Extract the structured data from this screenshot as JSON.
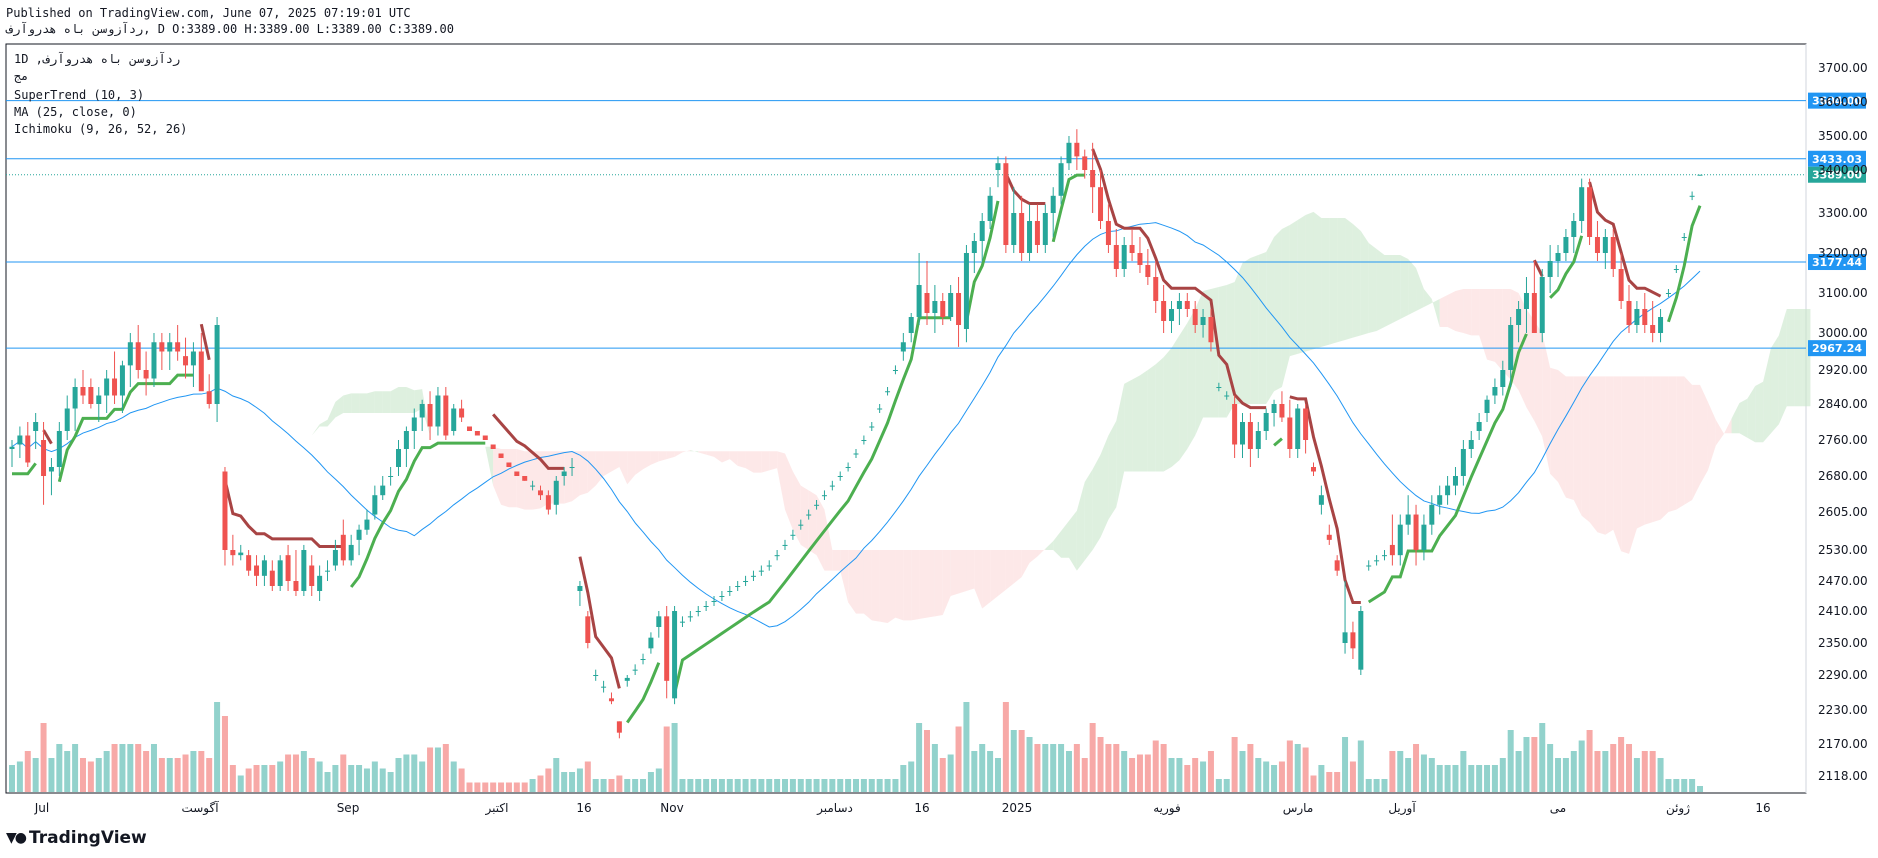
{
  "header": {
    "published": "Published on TradingView.com, June 07, 2025 07:19:01 UTC",
    "ohlc": "ردآزوسن باه هدروآرف, D O:3389.00 H:3389.00 L:3389.00 C:3389.00"
  },
  "legend": {
    "symbol": "1D ,ردآزوسن باه هدروآرف",
    "exchange": "مج",
    "supertrend": "SuperTrend (10, 3)",
    "ma": "MA (25, close, 0)",
    "ichimoku": "Ichimoku (9, 26, 52, 26)"
  },
  "brand": {
    "name": "TradingView",
    "logo_icon": "tradingview-logo-icon"
  },
  "colors": {
    "up": "#26a69a",
    "down": "#ef5350",
    "supertrend_up": "#4caf50",
    "supertrend_down": "#a84444",
    "ma": "#2196f3",
    "cloud_bull": "#c8e6c9",
    "cloud_bear": "#fcd8d8",
    "hline": "#2196f3",
    "last_price": "#26a69a"
  },
  "chart_data": {
    "type": "candlestick",
    "yticks": [
      3700,
      3600,
      3500,
      3400,
      3300,
      3200,
      3100,
      3000,
      2920,
      2840,
      2760,
      2680,
      2605,
      2530,
      2470,
      2410,
      2350,
      2290,
      2230,
      2170,
      2118
    ],
    "xticks": [
      "Jul",
      "آگوست",
      "Sep",
      "اکتبر",
      "16",
      "Nov",
      "دسامبر",
      "16",
      "2025",
      "فوریه",
      "مارس",
      "آوریل",
      "می",
      "ژوئن",
      "16"
    ],
    "horizontal_lines": [
      3604.0,
      3433.03,
      3177.44,
      2967.24
    ],
    "last_price": 3389.0,
    "candles_ohlc": [
      [
        2740,
        2760,
        2700,
        2745
      ],
      [
        2750,
        2790,
        2720,
        2770
      ],
      [
        2770,
        2800,
        2700,
        2710
      ],
      [
        2780,
        2820,
        2740,
        2800
      ],
      [
        2760,
        2800,
        2620,
        2680
      ],
      [
        2690,
        2720,
        2640,
        2700
      ],
      [
        2700,
        2800,
        2680,
        2780
      ],
      [
        2780,
        2860,
        2760,
        2830
      ],
      [
        2830,
        2900,
        2780,
        2880
      ],
      [
        2880,
        2920,
        2840,
        2860
      ],
      [
        2880,
        2900,
        2830,
        2840
      ],
      [
        2840,
        2880,
        2800,
        2860
      ],
      [
        2860,
        2920,
        2820,
        2900
      ],
      [
        2900,
        2960,
        2840,
        2860
      ],
      [
        2860,
        2940,
        2820,
        2930
      ],
      [
        2930,
        3000,
        2880,
        2980
      ],
      [
        2980,
        3020,
        2900,
        2920
      ],
      [
        2920,
        2960,
        2860,
        2900
      ],
      [
        2900,
        3000,
        2880,
        2980
      ],
      [
        2980,
        3000,
        2920,
        2960
      ],
      [
        2960,
        3000,
        2920,
        2980
      ],
      [
        2980,
        3020,
        2940,
        2960
      ],
      [
        2950,
        2990,
        2900,
        2930
      ],
      [
        2930,
        2980,
        2880,
        2960
      ],
      [
        2960,
        3000,
        2900,
        2870
      ],
      [
        2870,
        2910,
        2830,
        2840
      ],
      [
        2840,
        3040,
        2800,
        3020
      ],
      [
        2690,
        2700,
        2500,
        2530
      ],
      [
        2530,
        2560,
        2500,
        2520
      ],
      [
        2520,
        2540,
        2510,
        2525
      ],
      [
        2520,
        2530,
        2480,
        2490
      ],
      [
        2500,
        2520,
        2460,
        2480
      ],
      [
        2480,
        2520,
        2460,
        2510
      ],
      [
        2490,
        2510,
        2450,
        2460
      ],
      [
        2460,
        2520,
        2450,
        2510
      ],
      [
        2520,
        2540,
        2450,
        2470
      ],
      [
        2470,
        2530,
        2440,
        2450
      ],
      [
        2450,
        2540,
        2440,
        2530
      ],
      [
        2500,
        2520,
        2440,
        2460
      ],
      [
        2450,
        2500,
        2430,
        2480
      ],
      [
        2490,
        2510,
        2470,
        2490
      ],
      [
        2500,
        2550,
        2490,
        2530
      ],
      [
        2560,
        2590,
        2500,
        2510
      ],
      [
        2510,
        2560,
        2500,
        2540
      ],
      [
        2550,
        2580,
        2520,
        2570
      ],
      [
        2570,
        2610,
        2560,
        2590
      ],
      [
        2600,
        2660,
        2590,
        2640
      ],
      [
        2640,
        2680,
        2630,
        2660
      ],
      [
        2680,
        2700,
        2660,
        2680
      ],
      [
        2700,
        2760,
        2680,
        2740
      ],
      [
        2740,
        2790,
        2700,
        2780
      ],
      [
        2780,
        2830,
        2740,
        2810
      ],
      [
        2810,
        2850,
        2780,
        2840
      ],
      [
        2840,
        2870,
        2760,
        2790
      ],
      [
        2790,
        2880,
        2770,
        2860
      ],
      [
        2860,
        2880,
        2760,
        2770
      ],
      [
        2780,
        2840,
        2770,
        2830
      ],
      [
        2830,
        2850,
        2800,
        2810
      ],
      [
        2790,
        2790,
        2780,
        2780
      ],
      [
        2780,
        2780,
        2770,
        2770
      ],
      [
        2770,
        2770,
        2760,
        2760
      ],
      [
        2750,
        2750,
        2740,
        2740
      ],
      [
        2730,
        2730,
        2720,
        2720
      ],
      [
        2710,
        2710,
        2700,
        2700
      ],
      [
        2690,
        2690,
        2680,
        2680
      ],
      [
        2680,
        2680,
        2670,
        2670
      ],
      [
        2660,
        2670,
        2650,
        2660
      ],
      [
        2650,
        2660,
        2630,
        2640
      ],
      [
        2640,
        2650,
        2600,
        2610
      ],
      [
        2620,
        2680,
        2600,
        2670
      ],
      [
        2680,
        2700,
        2660,
        2690
      ],
      [
        2700,
        2720,
        2680,
        2700
      ],
      [
        2450,
        2470,
        2420,
        2460
      ],
      [
        2400,
        2410,
        2340,
        2350
      ],
      [
        2290,
        2300,
        2280,
        2290
      ],
      [
        2270,
        2280,
        2260,
        2270
      ],
      [
        2250,
        2260,
        2240,
        2245
      ],
      [
        2210,
        2210,
        2180,
        2190
      ],
      [
        2280,
        2290,
        2270,
        2285
      ],
      [
        2300,
        2310,
        2290,
        2300
      ],
      [
        2320,
        2330,
        2310,
        2320
      ],
      [
        2340,
        2370,
        2330,
        2360
      ],
      [
        2380,
        2410,
        2360,
        2400
      ],
      [
        2400,
        2420,
        2250,
        2280
      ],
      [
        2250,
        2420,
        2240,
        2410
      ],
      [
        2390,
        2400,
        2380,
        2390
      ],
      [
        2400,
        2410,
        2390,
        2400
      ],
      [
        2410,
        2420,
        2400,
        2410
      ],
      [
        2420,
        2430,
        2410,
        2420
      ],
      [
        2430,
        2440,
        2420,
        2430
      ],
      [
        2440,
        2450,
        2430,
        2440
      ],
      [
        2450,
        2460,
        2440,
        2450
      ],
      [
        2460,
        2470,
        2450,
        2460
      ],
      [
        2470,
        2480,
        2460,
        2470
      ],
      [
        2480,
        2490,
        2470,
        2480
      ],
      [
        2490,
        2500,
        2480,
        2490
      ],
      [
        2500,
        2510,
        2490,
        2500
      ],
      [
        2520,
        2530,
        2510,
        2520
      ],
      [
        2540,
        2550,
        2530,
        2540
      ],
      [
        2560,
        2570,
        2550,
        2560
      ],
      [
        2580,
        2590,
        2570,
        2580
      ],
      [
        2600,
        2610,
        2590,
        2600
      ],
      [
        2620,
        2630,
        2610,
        2620
      ],
      [
        2640,
        2650,
        2630,
        2640
      ],
      [
        2660,
        2670,
        2650,
        2660
      ],
      [
        2680,
        2690,
        2670,
        2680
      ],
      [
        2700,
        2710,
        2690,
        2700
      ],
      [
        2730,
        2740,
        2720,
        2730
      ],
      [
        2760,
        2770,
        2750,
        2760
      ],
      [
        2790,
        2800,
        2780,
        2790
      ],
      [
        2830,
        2840,
        2820,
        2830
      ],
      [
        2870,
        2880,
        2860,
        2870
      ],
      [
        2920,
        2930,
        2910,
        2920
      ],
      [
        2960,
        3000,
        2940,
        2980
      ],
      [
        3000,
        3050,
        2980,
        3040
      ],
      [
        3040,
        3200,
        3020,
        3120
      ],
      [
        3100,
        3180,
        3020,
        3050
      ],
      [
        3050,
        3120,
        3000,
        3080
      ],
      [
        3080,
        3100,
        3020,
        3040
      ],
      [
        3040,
        3120,
        3030,
        3100
      ],
      [
        3100,
        3140,
        2970,
        3020
      ],
      [
        3010,
        3220,
        2980,
        3200
      ],
      [
        3200,
        3250,
        3150,
        3230
      ],
      [
        3230,
        3300,
        3180,
        3280
      ],
      [
        3280,
        3360,
        3260,
        3340
      ],
      [
        3400,
        3440,
        3360,
        3420
      ],
      [
        3420,
        3440,
        3200,
        3220
      ],
      [
        3220,
        3360,
        3200,
        3300
      ],
      [
        3300,
        3340,
        3180,
        3200
      ],
      [
        3200,
        3320,
        3180,
        3280
      ],
      [
        3280,
        3320,
        3200,
        3220
      ],
      [
        3220,
        3320,
        3200,
        3300
      ],
      [
        3300,
        3360,
        3240,
        3340
      ],
      [
        3340,
        3440,
        3320,
        3420
      ],
      [
        3420,
        3500,
        3400,
        3480
      ],
      [
        3480,
        3520,
        3400,
        3440
      ],
      [
        3440,
        3460,
        3380,
        3400
      ],
      [
        3400,
        3480,
        3300,
        3360
      ],
      [
        3360,
        3400,
        3260,
        3280
      ],
      [
        3280,
        3320,
        3200,
        3220
      ],
      [
        3220,
        3260,
        3140,
        3160
      ],
      [
        3160,
        3240,
        3140,
        3220
      ],
      [
        3220,
        3260,
        3180,
        3200
      ],
      [
        3200,
        3240,
        3150,
        3170
      ],
      [
        3170,
        3210,
        3120,
        3140
      ],
      [
        3140,
        3180,
        3050,
        3080
      ],
      [
        3080,
        3120,
        3000,
        3030
      ],
      [
        3030,
        3080,
        3000,
        3060
      ],
      [
        3060,
        3100,
        3020,
        3080
      ],
      [
        3080,
        3100,
        3040,
        3060
      ],
      [
        3060,
        3080,
        3000,
        3020
      ],
      [
        3020,
        3060,
        2990,
        3040
      ],
      [
        3040,
        3060,
        2960,
        2980
      ],
      [
        2880,
        2890,
        2870,
        2880
      ],
      [
        2860,
        2870,
        2850,
        2860
      ],
      [
        2840,
        2860,
        2720,
        2750
      ],
      [
        2750,
        2820,
        2720,
        2800
      ],
      [
        2800,
        2820,
        2700,
        2740
      ],
      [
        2740,
        2800,
        2720,
        2780
      ],
      [
        2780,
        2830,
        2760,
        2820
      ],
      [
        2820,
        2850,
        2790,
        2840
      ],
      [
        2840,
        2870,
        2800,
        2810
      ],
      [
        2810,
        2850,
        2720,
        2740
      ],
      [
        2740,
        2840,
        2720,
        2830
      ],
      [
        2830,
        2840,
        2730,
        2760
      ],
      [
        2700,
        2710,
        2680,
        2690
      ],
      [
        2620,
        2660,
        2600,
        2640
      ],
      [
        2560,
        2580,
        2540,
        2550
      ],
      [
        2510,
        2520,
        2480,
        2490
      ],
      [
        2350,
        2470,
        2330,
        2370
      ],
      [
        2370,
        2390,
        2320,
        2340
      ],
      [
        2300,
        2420,
        2290,
        2410
      ],
      [
        2500,
        2510,
        2490,
        2500
      ],
      [
        2510,
        2520,
        2500,
        2510
      ],
      [
        2520,
        2530,
        2510,
        2520
      ],
      [
        2540,
        2600,
        2500,
        2520
      ],
      [
        2520,
        2600,
        2500,
        2580
      ],
      [
        2580,
        2640,
        2560,
        2600
      ],
      [
        2600,
        2620,
        2500,
        2530
      ],
      [
        2530,
        2600,
        2510,
        2580
      ],
      [
        2580,
        2640,
        2560,
        2620
      ],
      [
        2620,
        2660,
        2600,
        2640
      ],
      [
        2640,
        2680,
        2620,
        2660
      ],
      [
        2660,
        2700,
        2640,
        2680
      ],
      [
        2680,
        2760,
        2660,
        2740
      ],
      [
        2740,
        2780,
        2720,
        2760
      ],
      [
        2780,
        2820,
        2760,
        2800
      ],
      [
        2820,
        2860,
        2800,
        2850
      ],
      [
        2860,
        2900,
        2840,
        2880
      ],
      [
        2880,
        2940,
        2860,
        2920
      ],
      [
        2920,
        3040,
        2880,
        3020
      ],
      [
        3020,
        3080,
        2980,
        3060
      ],
      [
        3060,
        3140,
        3000,
        3100
      ],
      [
        3100,
        3180,
        3040,
        3000
      ],
      [
        3000,
        3160,
        2980,
        3140
      ],
      [
        3140,
        3220,
        3100,
        3180
      ],
      [
        3180,
        3220,
        3140,
        3200
      ],
      [
        3200,
        3260,
        3180,
        3240
      ],
      [
        3240,
        3300,
        3200,
        3280
      ],
      [
        3280,
        3380,
        3250,
        3360
      ],
      [
        3360,
        3380,
        3220,
        3240
      ],
      [
        3240,
        3280,
        3180,
        3200
      ],
      [
        3200,
        3260,
        3160,
        3240
      ],
      [
        3240,
        3260,
        3140,
        3160
      ],
      [
        3160,
        3200,
        3060,
        3080
      ],
      [
        3080,
        3120,
        3000,
        3020
      ],
      [
        3020,
        3080,
        3000,
        3060
      ],
      [
        3060,
        3100,
        3000,
        3020
      ],
      [
        3020,
        3080,
        2980,
        3000
      ],
      [
        3000,
        3060,
        2980,
        3040
      ],
      [
        3100,
        3110,
        3090,
        3100
      ],
      [
        3160,
        3170,
        3150,
        3160
      ],
      [
        3240,
        3250,
        3230,
        3240
      ],
      [
        3340,
        3350,
        3330,
        3340
      ],
      [
        3389,
        3389,
        3389,
        3389
      ]
    ]
  }
}
